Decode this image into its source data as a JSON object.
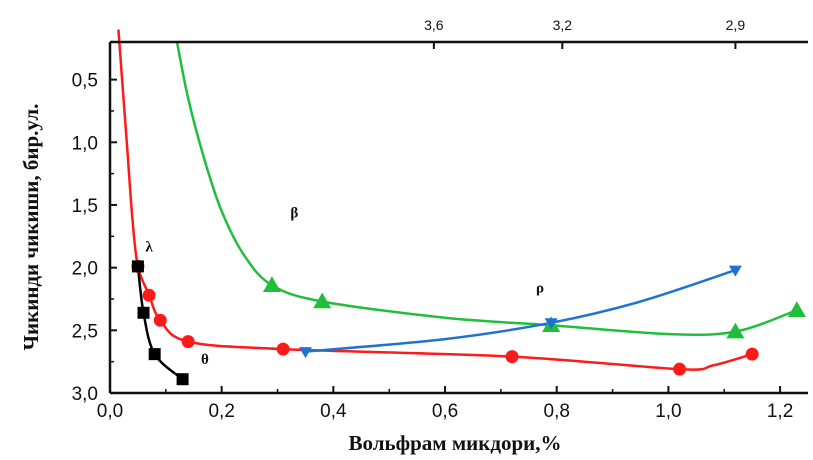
{
  "chart_data": {
    "type": "line",
    "xlabel": "Вольфрам микдори,%",
    "ylabel": "Чикинди чикиши, бир.ул.",
    "xlim": [
      0.0,
      1.25
    ],
    "ylim": [
      3.0,
      0.2
    ],
    "y_inverted": true,
    "x_ticks": [
      "0,0",
      "0,2",
      "0,4",
      "0,6",
      "0,8",
      "1,0",
      "1,2"
    ],
    "x_tick_values": [
      0.0,
      0.2,
      0.4,
      0.6,
      0.8,
      1.0,
      1.2
    ],
    "y_ticks": [
      "0,5",
      "1,0",
      "1,5",
      "2,0",
      "2,5",
      "3,0"
    ],
    "y_tick_values": [
      0.5,
      1.0,
      1.5,
      2.0,
      2.5,
      3.0
    ],
    "top_axis_ticks": [
      "3,6",
      "3,2",
      "2,9"
    ],
    "top_axis_tick_positions": [
      0.58,
      0.81,
      1.12
    ],
    "grid": false,
    "series": [
      {
        "name": "λ",
        "color": "#ff1a1a",
        "marker": "circle",
        "points": [
          [
            0.05,
            1.99
          ],
          [
            0.07,
            2.22
          ],
          [
            0.09,
            2.42
          ],
          [
            0.14,
            2.59
          ],
          [
            0.31,
            2.65
          ],
          [
            0.72,
            2.71
          ],
          [
            1.02,
            2.81
          ],
          [
            1.15,
            2.69
          ]
        ],
        "curve": [
          [
            0.015,
            0.1
          ],
          [
            0.03,
            1.0
          ],
          [
            0.04,
            1.6
          ],
          [
            0.05,
            1.99
          ],
          [
            0.07,
            2.22
          ],
          [
            0.09,
            2.42
          ],
          [
            0.14,
            2.59
          ],
          [
            0.31,
            2.65
          ],
          [
            0.72,
            2.71
          ],
          [
            1.02,
            2.81
          ],
          [
            1.08,
            2.78
          ],
          [
            1.15,
            2.69
          ]
        ]
      },
      {
        "name": "β",
        "color": "#1fbf3c",
        "marker": "triangle",
        "points": [
          [
            0.29,
            2.14
          ],
          [
            0.38,
            2.27
          ],
          [
            0.79,
            2.46
          ],
          [
            1.12,
            2.51
          ],
          [
            1.23,
            2.34
          ]
        ],
        "curve": [
          [
            0.12,
            0.2
          ],
          [
            0.14,
            0.65
          ],
          [
            0.17,
            1.15
          ],
          [
            0.2,
            1.55
          ],
          [
            0.24,
            1.9
          ],
          [
            0.29,
            2.14
          ],
          [
            0.38,
            2.27
          ],
          [
            0.6,
            2.4
          ],
          [
            0.79,
            2.46
          ],
          [
            1.0,
            2.53
          ],
          [
            1.12,
            2.51
          ],
          [
            1.23,
            2.34
          ]
        ]
      },
      {
        "name": "ρ",
        "color": "#1e73d2",
        "marker": "triangle-down",
        "points": [
          [
            0.35,
            2.67
          ],
          [
            0.79,
            2.44
          ],
          [
            1.12,
            2.02
          ]
        ],
        "curve": [
          [
            0.35,
            2.67
          ],
          [
            0.6,
            2.57
          ],
          [
            0.79,
            2.44
          ],
          [
            0.95,
            2.27
          ],
          [
            1.12,
            2.02
          ]
        ]
      },
      {
        "name": "θ",
        "color": "#000000",
        "marker": "square",
        "points": [
          [
            0.05,
            1.99
          ],
          [
            0.06,
            2.36
          ],
          [
            0.08,
            2.69
          ],
          [
            0.13,
            2.89
          ]
        ],
        "curve": [
          [
            0.05,
            1.99
          ],
          [
            0.06,
            2.36
          ],
          [
            0.08,
            2.69
          ],
          [
            0.13,
            2.89
          ]
        ]
      }
    ],
    "series_label_positions": [
      [
        0.07,
        1.87
      ],
      [
        0.33,
        1.6
      ],
      [
        0.77,
        2.2
      ],
      [
        0.17,
        2.77
      ]
    ]
  }
}
